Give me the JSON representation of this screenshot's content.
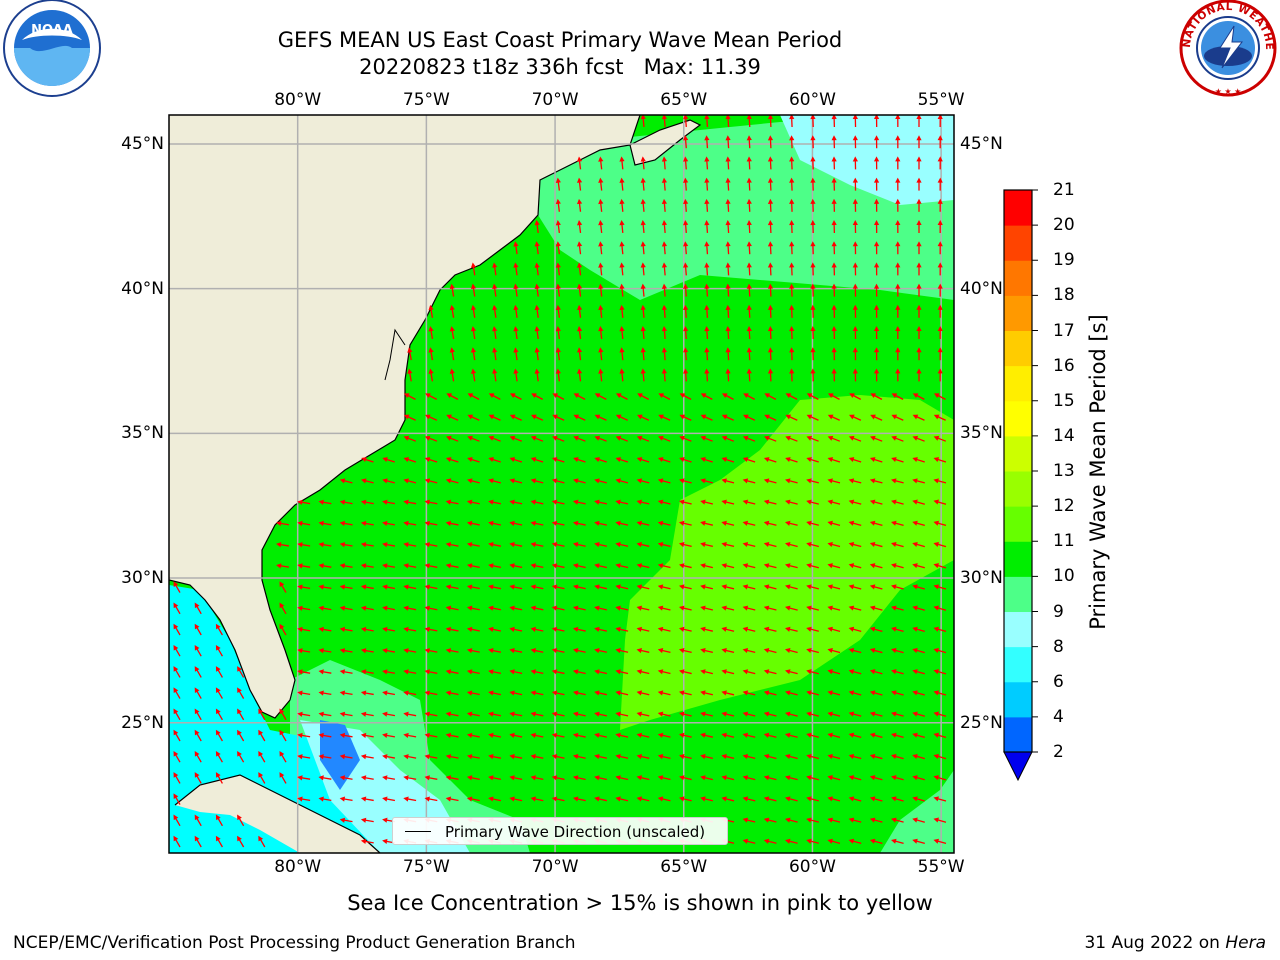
{
  "header": {
    "title_line1": "GEFS MEAN US East Coast Primary Wave Mean Period",
    "title_line2": "20220823 t18z 336h fcst   Max: 11.39"
  },
  "map": {
    "lon_labels": [
      "80°W",
      "75°W",
      "70°W",
      "65°W",
      "60°W",
      "55°W"
    ],
    "lat_labels": [
      "45°N",
      "40°N",
      "35°N",
      "30°N",
      "25°N"
    ],
    "lon_values": [
      -80,
      -75,
      -70,
      -65,
      -60,
      -55
    ],
    "lat_values": [
      45,
      40,
      35,
      30,
      25
    ],
    "lon_range": [
      -85,
      -54.5
    ],
    "lat_range": [
      20.5,
      46
    ],
    "land_color": "#efedd9",
    "grid_color": "#b0b0b0",
    "arrow_color": "#ff0000",
    "coastline_color": "#000000"
  },
  "legend": {
    "label": "Primary Wave Direction (unscaled)"
  },
  "colorbar": {
    "label": "Primary Wave Mean Period [s]",
    "ticks": [
      "2",
      "4",
      "6",
      "8",
      "9",
      "10",
      "11",
      "12",
      "13",
      "14",
      "15",
      "16",
      "17",
      "18",
      "19",
      "20",
      "21"
    ],
    "colors": [
      "#0066ff",
      "#00ccff",
      "#33ffff",
      "#99ffff",
      "#4dff88",
      "#00ee00",
      "#66ff00",
      "#99ff00",
      "#ccff00",
      "#ffff00",
      "#ffee00",
      "#ffcc00",
      "#ff9900",
      "#ff7700",
      "#ff4400",
      "#ff0000"
    ],
    "extend_color": "#0000ee"
  },
  "caption": "Sea Ice Concentration > 15% is shown in pink to yellow",
  "footer": {
    "left": "NCEP/EMC/Verification Post Processing Product Generation Branch",
    "right_date": "31 Aug 2022 on ",
    "right_host": "Hera"
  },
  "logos": {
    "noaa_text": "NOAA",
    "nws_text": "NATIONAL WEATHER SERVICE"
  }
}
